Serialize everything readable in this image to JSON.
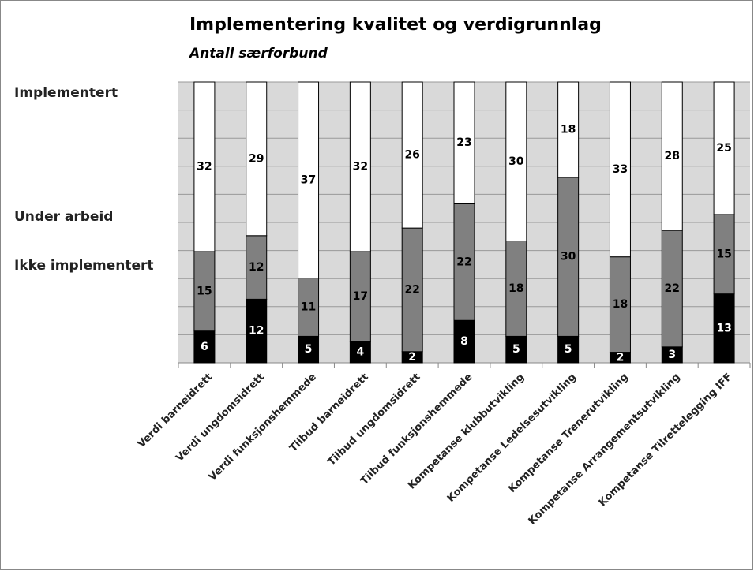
{
  "chart_data": {
    "type": "bar",
    "stacking": "percent",
    "title": "Implementering kvalitet og verdigrunnlag",
    "subtitle": "Antall særforbund",
    "categories": [
      "Verdi barneidrett",
      "Verdi ungdomsidrett",
      "Verdi funksjonshemmede",
      "Tilbud barneidrett",
      "Tilbud ungdomsidrett",
      "Tilbud funksjonshemmede",
      "Kompetanse klubbutvikling",
      "Kompetanse Ledelsesutvikling",
      "Kompetanse Trenerutvikling",
      "Kompetanse Arrangementsutvikling",
      "Kompetanse Tilrettelegging IFF"
    ],
    "series": [
      {
        "name": "Ikke implementert",
        "color": "#000000",
        "values": [
          6,
          12,
          5,
          4,
          2,
          8,
          5,
          5,
          2,
          3,
          13
        ]
      },
      {
        "name": "Under arbeid",
        "color": "#808080",
        "values": [
          15,
          12,
          11,
          17,
          22,
          22,
          18,
          30,
          18,
          22,
          15
        ]
      },
      {
        "name": "Implementert",
        "color": "#ffffff",
        "values": [
          32,
          29,
          37,
          32,
          26,
          23,
          30,
          18,
          33,
          28,
          25
        ]
      }
    ],
    "grid": true
  }
}
